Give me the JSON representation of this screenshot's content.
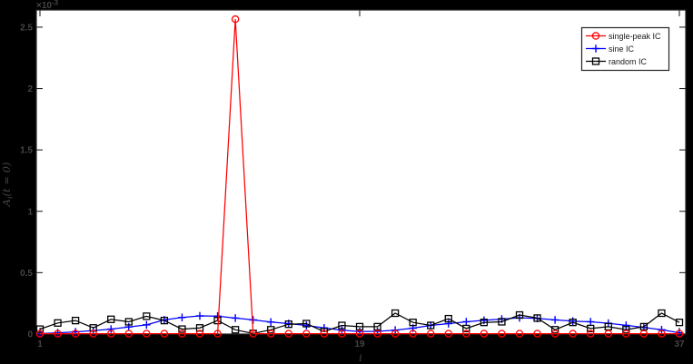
{
  "figure": {
    "background": "#000000",
    "plot_background": "#ffffff",
    "frame_color": "#262626",
    "tick_label_color": "#454545"
  },
  "chart_data": {
    "type": "line",
    "title": "",
    "xlabel": "i",
    "ylabel": "A_i(t = 0)",
    "ylabel_parts": {
      "main": "A",
      "sub": "i",
      "rest": "(t = 0)"
    },
    "y_multiplier": {
      "base": "×10",
      "exp": "-3"
    },
    "y_unit_scale": "1e-3",
    "xlim": [
      1,
      37
    ],
    "ylim_e3": [
      0,
      2.64
    ],
    "xticks": [
      1,
      19,
      37
    ],
    "yticks_e3": [
      0,
      0.5,
      1,
      1.5,
      2,
      2.5
    ],
    "grid": "off",
    "legend_position": "top-right",
    "x": [
      1,
      2,
      3,
      4,
      5,
      6,
      7,
      8,
      9,
      10,
      11,
      12,
      13,
      14,
      15,
      16,
      17,
      18,
      19,
      20,
      21,
      22,
      23,
      24,
      25,
      26,
      27,
      28,
      29,
      30,
      31,
      32,
      33,
      34,
      35,
      36,
      37
    ],
    "series": [
      {
        "name": "single-peak IC",
        "color": "#ff0000",
        "marker": "circle",
        "values_e3": [
          0.003,
          0.003,
          0.003,
          0.003,
          0.003,
          0.003,
          0.003,
          0.003,
          0.003,
          0.003,
          0.003,
          2.565,
          0.003,
          0.003,
          0.003,
          0.003,
          0.003,
          0.003,
          0.003,
          0.003,
          0.003,
          0.003,
          0.003,
          0.003,
          0.003,
          0.003,
          0.003,
          0.003,
          0.003,
          0.003,
          0.003,
          0.003,
          0.003,
          0.003,
          0.003,
          0.003,
          0.003
        ]
      },
      {
        "name": "sine IC",
        "color": "#0000ff",
        "marker": "plus",
        "values_e3": [
          0.004,
          0.01,
          0.018,
          0.027,
          0.04,
          0.058,
          0.075,
          0.115,
          0.135,
          0.148,
          0.146,
          0.13,
          0.115,
          0.098,
          0.085,
          0.07,
          0.05,
          0.032,
          0.02,
          0.022,
          0.032,
          0.048,
          0.07,
          0.085,
          0.1,
          0.112,
          0.122,
          0.132,
          0.128,
          0.115,
          0.105,
          0.1,
          0.088,
          0.071,
          0.054,
          0.035,
          0.01
        ]
      },
      {
        "name": "random IC",
        "color": "#000000",
        "marker": "square",
        "values_e3": [
          0.04,
          0.09,
          0.11,
          0.05,
          0.12,
          0.1,
          0.145,
          0.11,
          0.04,
          0.05,
          0.11,
          0.035,
          0.005,
          0.035,
          0.08,
          0.085,
          0.02,
          0.07,
          0.06,
          0.06,
          0.17,
          0.095,
          0.07,
          0.125,
          0.045,
          0.095,
          0.1,
          0.155,
          0.13,
          0.035,
          0.095,
          0.045,
          0.06,
          0.035,
          0.06,
          0.17,
          0.095
        ]
      }
    ]
  }
}
